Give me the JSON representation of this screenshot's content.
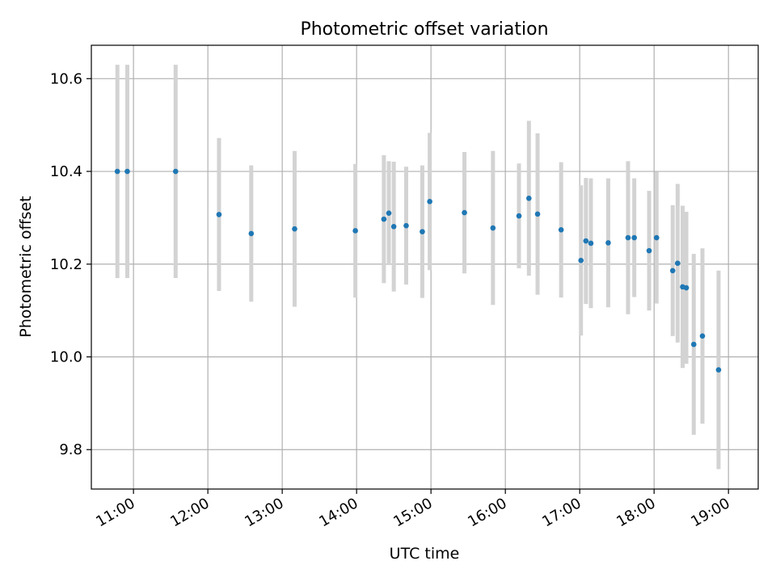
{
  "chart_data": {
    "type": "scatter",
    "title": "Photometric offset variation",
    "xlabel": "UTC time",
    "ylabel": "Photometric offset",
    "xlim": [
      "10:26",
      "19:24"
    ],
    "ylim": [
      9.715,
      10.672
    ],
    "grid": true,
    "x_ticks": [
      "11:00",
      "12:00",
      "13:00",
      "14:00",
      "15:00",
      "16:00",
      "17:00",
      "18:00",
      "19:00"
    ],
    "y_ticks": [
      9.8,
      10.0,
      10.2,
      10.4,
      10.6
    ],
    "y_tick_labels": [
      "9.8",
      "10.0",
      "10.2",
      "10.4",
      "10.6"
    ],
    "colors": {
      "marker": "#1f77b4",
      "errorbar": "#d3d3d3"
    },
    "series": [
      {
        "points": [
          {
            "x": "10:47",
            "y": 10.4,
            "err": 0.23
          },
          {
            "x": "10:55",
            "y": 10.4,
            "err": 0.23
          },
          {
            "x": "11:34",
            "y": 10.4,
            "err": 0.23
          },
          {
            "x": "12:09",
            "y": 10.307,
            "err": 0.165
          },
          {
            "x": "12:35",
            "y": 10.266,
            "err": 0.147
          },
          {
            "x": "13:10",
            "y": 10.276,
            "err": 0.168
          },
          {
            "x": "13:59",
            "y": 10.272,
            "err": 0.144
          },
          {
            "x": "14:22",
            "y": 10.297,
            "err": 0.138
          },
          {
            "x": "14:26",
            "y": 10.31,
            "err": 0.112
          },
          {
            "x": "14:30",
            "y": 10.281,
            "err": 0.14
          },
          {
            "x": "14:40",
            "y": 10.283,
            "err": 0.127
          },
          {
            "x": "14:53",
            "y": 10.27,
            "err": 0.143
          },
          {
            "x": "14:59",
            "y": 10.335,
            "err": 0.148
          },
          {
            "x": "15:27",
            "y": 10.311,
            "err": 0.131
          },
          {
            "x": "15:50",
            "y": 10.278,
            "err": 0.166
          },
          {
            "x": "16:11",
            "y": 10.304,
            "err": 0.113
          },
          {
            "x": "16:19",
            "y": 10.342,
            "err": 0.167
          },
          {
            "x": "16:26",
            "y": 10.308,
            "err": 0.174
          },
          {
            "x": "16:45",
            "y": 10.274,
            "err": 0.146
          },
          {
            "x": "17:01",
            "y": 10.208,
            "err": 0.162
          },
          {
            "x": "17:05",
            "y": 10.25,
            "err": 0.136
          },
          {
            "x": "17:09",
            "y": 10.245,
            "err": 0.14
          },
          {
            "x": "17:23",
            "y": 10.246,
            "err": 0.139
          },
          {
            "x": "17:39",
            "y": 10.257,
            "err": 0.165
          },
          {
            "x": "17:44",
            "y": 10.257,
            "err": 0.128
          },
          {
            "x": "17:56",
            "y": 10.229,
            "err": 0.129
          },
          {
            "x": "18:02",
            "y": 10.257,
            "err": 0.142
          },
          {
            "x": "18:15",
            "y": 10.186,
            "err": 0.141
          },
          {
            "x": "18:19",
            "y": 10.202,
            "err": 0.171
          },
          {
            "x": "18:23",
            "y": 10.151,
            "err": 0.175
          },
          {
            "x": "18:26",
            "y": 10.149,
            "err": 0.164
          },
          {
            "x": "18:32",
            "y": 10.027,
            "err": 0.195
          },
          {
            "x": "18:39",
            "y": 10.045,
            "err": 0.189
          },
          {
            "x": "18:52",
            "y": 9.972,
            "err": 0.214
          }
        ]
      }
    ]
  }
}
